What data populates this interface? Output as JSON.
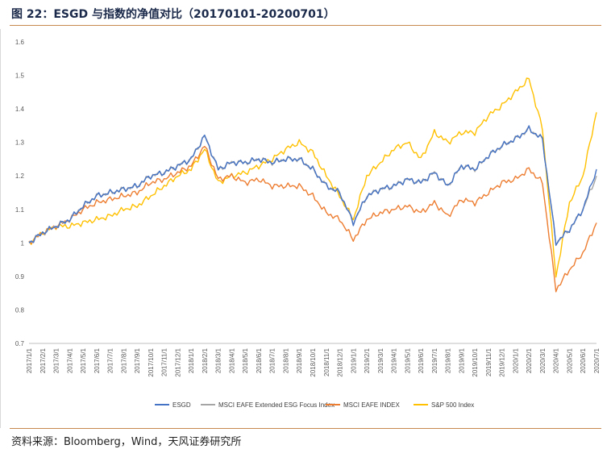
{
  "header": {
    "title": "图 22：ESGD 与指数的净值对比（20170101-20200701）"
  },
  "footer": {
    "source": "资料来源：Bloomberg，Wind，天风证券研究所"
  },
  "colors": {
    "accent_rule": "#c8894f",
    "title_text": "#1b2a4a"
  },
  "chart_data": {
    "type": "line",
    "title": "",
    "xlabel": "",
    "ylabel": "",
    "ylim": [
      0.7,
      1.6
    ],
    "yticks": [
      "0.7",
      "0.8",
      "0.9",
      "1",
      "1.1",
      "1.2",
      "1.3",
      "1.4",
      "1.5",
      "1.6"
    ],
    "grid": false,
    "legend_position": "bottom",
    "x": [
      "2017/1/1",
      "2017/2/1",
      "2017/3/1",
      "2017/4/1",
      "2017/5/1",
      "2017/6/1",
      "2017/7/1",
      "2017/8/1",
      "2017/9/1",
      "2017/10/1",
      "2017/11/1",
      "2017/12/1",
      "2018/1/1",
      "2018/2/1",
      "2018/3/1",
      "2018/4/1",
      "2018/5/1",
      "2018/6/1",
      "2018/7/1",
      "2018/8/1",
      "2018/9/1",
      "2018/10/1",
      "2018/11/1",
      "2018/12/1",
      "2019/1/1",
      "2019/2/1",
      "2019/3/1",
      "2019/4/1",
      "2019/5/1",
      "2019/6/1",
      "2019/7/1",
      "2019/8/1",
      "2019/9/1",
      "2019/10/1",
      "2019/11/1",
      "2019/12/1",
      "2020/1/1",
      "2020/2/1",
      "2020/3/1",
      "2020/4/1",
      "2020/5/1",
      "2020/6/1",
      "2020/7/1"
    ],
    "series": [
      {
        "name": "ESGD",
        "color": "#4472c4",
        "values": [
          1.0,
          1.03,
          1.05,
          1.07,
          1.11,
          1.14,
          1.15,
          1.16,
          1.17,
          1.2,
          1.21,
          1.23,
          1.25,
          1.32,
          1.22,
          1.24,
          1.24,
          1.25,
          1.24,
          1.25,
          1.25,
          1.22,
          1.17,
          1.15,
          1.06,
          1.14,
          1.16,
          1.17,
          1.19,
          1.18,
          1.21,
          1.17,
          1.23,
          1.22,
          1.26,
          1.29,
          1.31,
          1.34,
          1.31,
          1.0,
          1.04,
          1.1,
          1.22
        ]
      },
      {
        "name": "MSCI EAFE Extended ESG Focus Index",
        "color": "#a5a5a5",
        "values": [
          1.0,
          1.03,
          1.05,
          1.07,
          1.11,
          1.14,
          1.15,
          1.16,
          1.17,
          1.2,
          1.21,
          1.23,
          1.25,
          1.32,
          1.22,
          1.24,
          1.24,
          1.25,
          1.24,
          1.25,
          1.25,
          1.22,
          1.17,
          1.15,
          1.06,
          1.14,
          1.16,
          1.17,
          1.19,
          1.18,
          1.21,
          1.17,
          1.23,
          1.22,
          1.26,
          1.29,
          1.31,
          1.34,
          1.31,
          1.0,
          1.04,
          1.1,
          1.2
        ]
      },
      {
        "name": "MSCI EAFE INDEX",
        "color": "#ed7d31",
        "values": [
          1.0,
          1.03,
          1.05,
          1.07,
          1.1,
          1.12,
          1.13,
          1.14,
          1.15,
          1.18,
          1.19,
          1.21,
          1.23,
          1.29,
          1.19,
          1.2,
          1.18,
          1.19,
          1.17,
          1.17,
          1.17,
          1.14,
          1.09,
          1.07,
          1.01,
          1.07,
          1.09,
          1.1,
          1.11,
          1.09,
          1.12,
          1.08,
          1.13,
          1.12,
          1.15,
          1.18,
          1.19,
          1.22,
          1.18,
          0.86,
          0.92,
          0.97,
          1.06
        ]
      },
      {
        "name": "S&P 500 Index",
        "color": "#ffc000",
        "values": [
          1.0,
          1.03,
          1.05,
          1.05,
          1.06,
          1.07,
          1.08,
          1.1,
          1.11,
          1.14,
          1.17,
          1.2,
          1.22,
          1.28,
          1.18,
          1.2,
          1.21,
          1.23,
          1.25,
          1.28,
          1.3,
          1.27,
          1.2,
          1.14,
          1.07,
          1.2,
          1.24,
          1.28,
          1.3,
          1.25,
          1.33,
          1.3,
          1.33,
          1.33,
          1.38,
          1.41,
          1.45,
          1.49,
          1.34,
          0.9,
          1.12,
          1.2,
          1.39
        ]
      }
    ]
  }
}
